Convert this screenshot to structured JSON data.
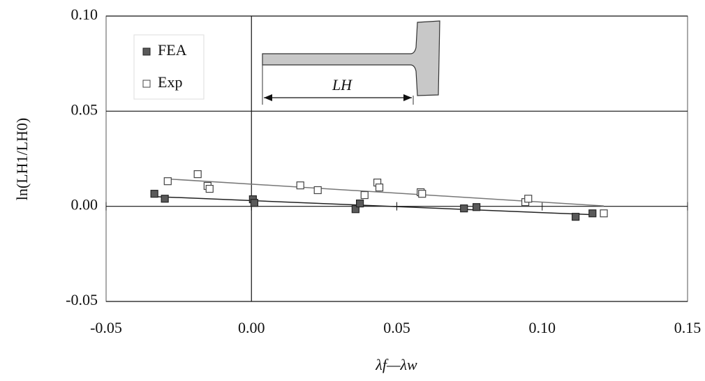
{
  "chart_data": {
    "type": "scatter",
    "x_label": "λf—λw",
    "y_label": "ln(LH1/LH0)",
    "annotation": "LH",
    "xlim": [
      -0.05,
      0.15
    ],
    "ylim": [
      -0.05,
      0.1
    ],
    "xticks": [
      {
        "value": -0.05,
        "label": "-0.05"
      },
      {
        "value": 0,
        "label": "0.00"
      },
      {
        "value": 0.05,
        "label": "0.05"
      },
      {
        "value": 0.1,
        "label": "0.10"
      },
      {
        "value": 0.15,
        "label": "0.15"
      }
    ],
    "yticks": [
      {
        "value": -0.05,
        "label": "-0.05"
      },
      {
        "value": 0,
        "label": "0.00"
      },
      {
        "value": 0.05,
        "label": "0.05"
      },
      {
        "value": 0.1,
        "label": "0.10"
      }
    ],
    "legend": "upper left",
    "series": [
      {
        "name": "FEA",
        "color": "#5a5a5a",
        "x": [
          -0.0334,
          -0.0298,
          0.0005,
          0.001,
          0.0358,
          0.0373,
          0.0731,
          0.0774,
          0.1115,
          0.1173
        ],
        "values": [
          0.0066,
          0.004,
          0.0037,
          0.0018,
          -0.0015,
          0.0015,
          -0.0011,
          -0.0004,
          -0.0055,
          -0.0037
        ]
      },
      {
        "name": "Exp",
        "color": "#ffffff",
        "x": [
          -0.0288,
          -0.0185,
          -0.0151,
          -0.0144,
          0.0168,
          0.0228,
          0.0389,
          0.0433,
          0.044,
          0.0582,
          0.0587,
          0.0942,
          0.0952,
          0.1212
        ],
        "values": [
          0.0132,
          0.0169,
          0.0107,
          0.0092,
          0.011,
          0.0085,
          0.0059,
          0.0125,
          0.0099,
          0.0074,
          0.0066,
          0.0022,
          0.004,
          -0.0037
        ]
      }
    ]
  }
}
